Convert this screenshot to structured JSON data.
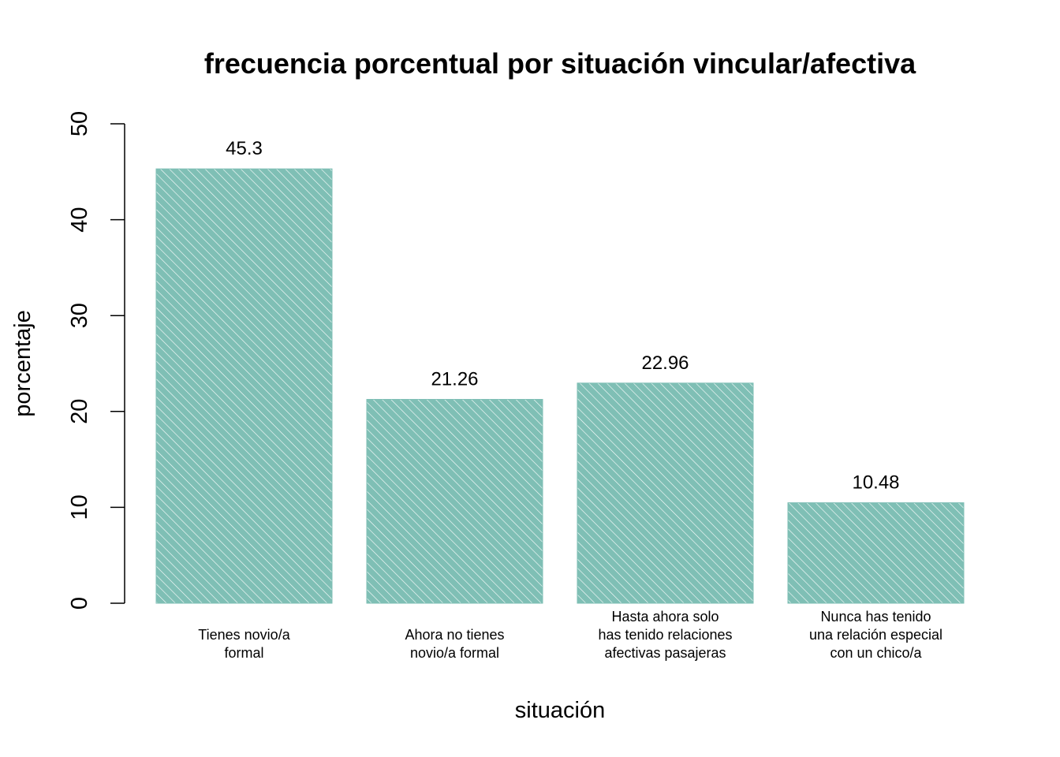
{
  "chart_data": {
    "type": "bar",
    "title": "frecuencia porcentual por situación vincular/afectiva",
    "xlabel": "situación",
    "ylabel": "porcentaje",
    "ylim": [
      0,
      50
    ],
    "yticks": [
      0,
      10,
      20,
      30,
      40,
      50
    ],
    "categories": [
      [
        "Tienes novio/a",
        "formal"
      ],
      [
        "Ahora no tienes",
        "novio/a formal"
      ],
      [
        "Hasta ahora solo",
        "has tenido relaciones",
        "afectivas pasajeras"
      ],
      [
        "Nunca has tenido",
        "una relación especial",
        "con un chico/a"
      ]
    ],
    "values": [
      45.3,
      21.26,
      22.96,
      10.48
    ],
    "value_labels": [
      "45.3",
      "21.26",
      "22.96",
      "10.48"
    ],
    "bar_color": "#7fbfb5",
    "hatch_color": "#ffffff",
    "grid": false
  }
}
